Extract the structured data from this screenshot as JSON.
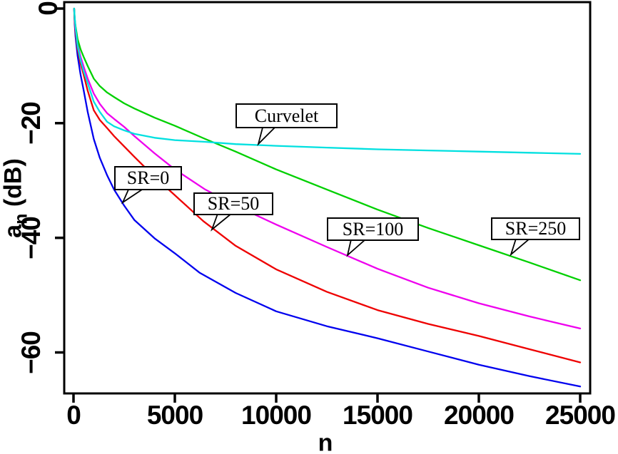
{
  "figure": {
    "background": "#ffffff"
  },
  "chart_data": {
    "type": "line",
    "title": "",
    "xlabel": "n",
    "ylabel": "a_n (dB)",
    "ylabel_parts": {
      "base": "a",
      "sub": "n",
      "rest": " (dB)"
    },
    "xlim": [
      -500,
      25500
    ],
    "ylim": [
      -67,
      1
    ],
    "grid": false,
    "legend_position": "callout-boxes-inside-plot",
    "x_ticks": [
      {
        "value": 0,
        "label": "0"
      },
      {
        "value": 5000,
        "label": "5000"
      },
      {
        "value": 10000,
        "label": "10000"
      },
      {
        "value": 15000,
        "label": "15000"
      },
      {
        "value": 20000,
        "label": "20000"
      },
      {
        "value": 25000,
        "label": "25000"
      }
    ],
    "y_ticks": [
      {
        "value": 0,
        "label": "0"
      },
      {
        "value": -20,
        "label": "−20"
      },
      {
        "value": -40,
        "label": "−40"
      },
      {
        "value": -60,
        "label": "−60"
      }
    ],
    "series": [
      {
        "name": "SR=0",
        "color": "#0000ee",
        "points": [
          [
            30,
            0
          ],
          [
            60,
            -2.8
          ],
          [
            100,
            -4.8
          ],
          [
            200,
            -8.2
          ],
          [
            350,
            -11.5
          ],
          [
            500,
            -14.2
          ],
          [
            700,
            -18.0
          ],
          [
            1000,
            -22.7
          ],
          [
            1300,
            -26.0
          ],
          [
            1655,
            -29.0
          ],
          [
            2000,
            -31.5
          ],
          [
            2500,
            -34.3
          ],
          [
            3000,
            -36.8
          ],
          [
            4000,
            -40.0
          ],
          [
            5000,
            -42.6
          ],
          [
            6230,
            -46.0
          ],
          [
            8000,
            -49.5
          ],
          [
            10000,
            -52.7
          ],
          [
            12500,
            -55.3
          ],
          [
            15000,
            -57.4
          ],
          [
            17500,
            -59.7
          ],
          [
            20000,
            -62.0
          ],
          [
            22500,
            -64.0
          ],
          [
            25000,
            -65.8
          ]
        ]
      },
      {
        "name": "SR=50",
        "color": "#ee0000",
        "points": [
          [
            30,
            0
          ],
          [
            60,
            -2.3
          ],
          [
            100,
            -4.0
          ],
          [
            200,
            -7.0
          ],
          [
            350,
            -9.6
          ],
          [
            500,
            -11.5
          ],
          [
            700,
            -14.3
          ],
          [
            1000,
            -17.7
          ],
          [
            1300,
            -19.4
          ],
          [
            1655,
            -20.8
          ],
          [
            2000,
            -22.2
          ],
          [
            2500,
            -24.0
          ],
          [
            3000,
            -25.8
          ],
          [
            4000,
            -29.3
          ],
          [
            5000,
            -32.5
          ],
          [
            6400,
            -37.0
          ],
          [
            8000,
            -41.3
          ],
          [
            10000,
            -45.4
          ],
          [
            12500,
            -49.3
          ],
          [
            15000,
            -52.5
          ],
          [
            17500,
            -54.9
          ],
          [
            20000,
            -57.0
          ],
          [
            22500,
            -59.3
          ],
          [
            25000,
            -61.6
          ]
        ]
      },
      {
        "name": "SR=100",
        "color": "#ee00ee",
        "points": [
          [
            30,
            0
          ],
          [
            60,
            -2.0
          ],
          [
            100,
            -3.5
          ],
          [
            200,
            -6.2
          ],
          [
            350,
            -8.4
          ],
          [
            500,
            -10.1
          ],
          [
            700,
            -12.2
          ],
          [
            1000,
            -14.8
          ],
          [
            1300,
            -16.6
          ],
          [
            1655,
            -18.2
          ],
          [
            2000,
            -19.2
          ],
          [
            2500,
            -20.6
          ],
          [
            3000,
            -22.2
          ],
          [
            4000,
            -25.2
          ],
          [
            5000,
            -28.0
          ],
          [
            6500,
            -31.5
          ],
          [
            8000,
            -34.3
          ],
          [
            10000,
            -37.6
          ],
          [
            12500,
            -41.5
          ],
          [
            15000,
            -45.3
          ],
          [
            17500,
            -48.6
          ],
          [
            20000,
            -51.3
          ],
          [
            22500,
            -53.6
          ],
          [
            25000,
            -55.7
          ]
        ]
      },
      {
        "name": "SR=250",
        "color": "#00d000",
        "points": [
          [
            30,
            0
          ],
          [
            60,
            -1.8
          ],
          [
            100,
            -3.0
          ],
          [
            200,
            -5.3
          ],
          [
            350,
            -7.1
          ],
          [
            500,
            -8.4
          ],
          [
            700,
            -10.0
          ],
          [
            1000,
            -12.2
          ],
          [
            1300,
            -13.5
          ],
          [
            1655,
            -14.6
          ],
          [
            2000,
            -15.4
          ],
          [
            2500,
            -16.5
          ],
          [
            3000,
            -17.4
          ],
          [
            4000,
            -19.0
          ],
          [
            5000,
            -20.4
          ],
          [
            6500,
            -22.7
          ],
          [
            8000,
            -24.9
          ],
          [
            10000,
            -28.0
          ],
          [
            12500,
            -31.5
          ],
          [
            15000,
            -35.0
          ],
          [
            17500,
            -38.2
          ],
          [
            20000,
            -41.2
          ],
          [
            22500,
            -44.2
          ],
          [
            25000,
            -47.3
          ]
        ]
      },
      {
        "name": "Curvelet",
        "color": "#00e0e0",
        "points": [
          [
            30,
            0
          ],
          [
            60,
            -1.5
          ],
          [
            100,
            -3.2
          ],
          [
            200,
            -6.5
          ],
          [
            350,
            -9.0
          ],
          [
            500,
            -10.9
          ],
          [
            700,
            -13.0
          ],
          [
            1000,
            -16.2
          ],
          [
            1300,
            -18.0
          ],
          [
            1655,
            -19.7
          ],
          [
            2000,
            -20.5
          ],
          [
            2500,
            -21.2
          ],
          [
            3000,
            -21.8
          ],
          [
            4000,
            -22.5
          ],
          [
            5000,
            -22.9
          ],
          [
            6500,
            -23.2
          ],
          [
            8000,
            -23.6
          ],
          [
            10000,
            -23.9
          ],
          [
            12500,
            -24.2
          ],
          [
            15000,
            -24.5
          ],
          [
            17500,
            -24.7
          ],
          [
            20000,
            -24.9
          ],
          [
            22500,
            -25.1
          ],
          [
            25000,
            -25.3
          ]
        ]
      }
    ],
    "annotations": [
      {
        "label": "Curvelet",
        "series": "Curvelet"
      },
      {
        "label": "SR=0",
        "series": "SR=0"
      },
      {
        "label": "SR=50",
        "series": "SR=50"
      },
      {
        "label": "SR=100",
        "series": "SR=100"
      },
      {
        "label": "SR=250",
        "series": "SR=250"
      }
    ]
  }
}
